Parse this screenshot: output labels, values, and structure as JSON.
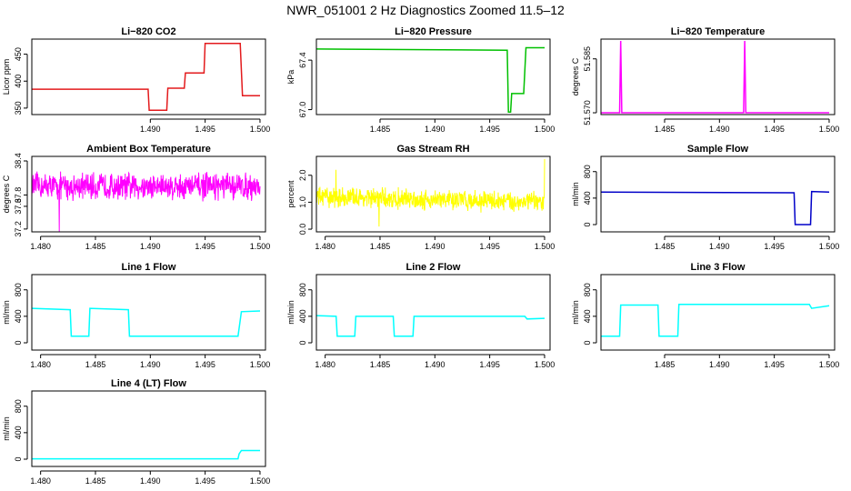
{
  "figure": {
    "title": "NWR_051001  2 Hz Diagnostics Zoomed 11.5–12"
  },
  "colors": {
    "red": "#e31a1c",
    "green": "#00c000",
    "magenta": "#ff00ff",
    "yellow": "#ffff00",
    "blue": "#0000c8",
    "cyan": "#00ffff"
  },
  "chart_data": [
    {
      "type": "line",
      "title": "Li−820 CO2",
      "ylabel": "Licor ppm",
      "color": "red",
      "xlim": [
        1.4792,
        1.5005
      ],
      "ylim": [
        338,
        478
      ],
      "x_ticks": [
        "1.490",
        "1.495",
        "1.500"
      ],
      "x_tick_values": [
        1.49,
        1.495,
        1.5
      ],
      "y_ticks": [
        "350",
        "400",
        "450"
      ],
      "y_tick_values": [
        350,
        400,
        450
      ],
      "x": [
        1.4792,
        1.4898,
        1.4899,
        1.4915,
        1.4916,
        1.4931,
        1.4932,
        1.4949,
        1.495,
        1.4982,
        1.4984,
        1.5
      ],
      "y": [
        385,
        385,
        346,
        346,
        387,
        387,
        415,
        415,
        470,
        470,
        373,
        373
      ]
    },
    {
      "type": "line",
      "title": "Li−820 Pressure",
      "ylabel": "kPa",
      "color": "green",
      "xlim": [
        1.4792,
        1.5005
      ],
      "ylim": [
        66.96,
        67.57
      ],
      "x_ticks": [
        "1.485",
        "1.490",
        "1.495",
        "1.500"
      ],
      "x_tick_values": [
        1.485,
        1.49,
        1.495,
        1.5
      ],
      "y_ticks": [
        "67.0",
        "67.4"
      ],
      "y_tick_values": [
        67.0,
        67.4
      ],
      "x": [
        1.4792,
        1.4966,
        1.4967,
        1.4969,
        1.497,
        1.4981,
        1.4983,
        1.5
      ],
      "y": [
        67.49,
        67.48,
        66.98,
        66.98,
        67.13,
        67.13,
        67.5,
        67.5
      ]
    },
    {
      "type": "line",
      "title": "Li−820 Temperature",
      "ylabel": "degrees C",
      "color": "magenta",
      "xlim": [
        1.4792,
        1.5005
      ],
      "ylim": [
        51.5695,
        51.5905
      ],
      "x_ticks": [
        "1.485",
        "1.490",
        "1.495",
        "1.500"
      ],
      "x_tick_values": [
        1.485,
        1.49,
        1.495,
        1.5
      ],
      "y_ticks": [
        "51.570",
        "51.585"
      ],
      "y_tick_values": [
        51.57,
        51.585
      ],
      "x": [
        1.4792,
        1.4809,
        1.481,
        1.4811,
        1.4922,
        1.4923,
        1.4924,
        1.5
      ],
      "y": [
        51.57,
        51.57,
        51.59,
        51.57,
        51.57,
        51.59,
        51.57,
        51.57
      ]
    },
    {
      "type": "line",
      "title": "Ambient Box Temperature",
      "ylabel": "degrees C",
      "color": "magenta",
      "xlim": [
        1.4792,
        1.5005
      ],
      "ylim": [
        37.15,
        38.48
      ],
      "x_ticks": [
        "1.480",
        "1.485",
        "1.490",
        "1.495",
        "1.500"
      ],
      "x_tick_values": [
        1.48,
        1.485,
        1.49,
        1.495,
        1.5
      ],
      "y_ticks": [
        "37.2",
        "37.6",
        "37.8",
        "38.4"
      ],
      "y_tick_values": [
        37.2,
        37.6,
        37.8,
        38.4
      ],
      "x": [
        1.4792,
        1.49,
        1.5
      ],
      "y": [
        37.95,
        37.95,
        37.95
      ],
      "noise": 0.28,
      "spikes": [
        [
          1.4817,
          37.15
        ]
      ]
    },
    {
      "type": "line",
      "title": "Gas Stream RH",
      "ylabel": "percent",
      "color": "yellow",
      "xlim": [
        1.4792,
        1.5005
      ],
      "ylim": [
        -0.1,
        2.7
      ],
      "x_ticks": [
        "1.480",
        "1.485",
        "1.490",
        "1.495",
        "1.500"
      ],
      "x_tick_values": [
        1.48,
        1.485,
        1.49,
        1.495,
        1.5
      ],
      "y_ticks": [
        "0.0",
        "1.0",
        "2.0"
      ],
      "y_tick_values": [
        0.0,
        1.0,
        2.0
      ],
      "x": [
        1.4792,
        1.5
      ],
      "y": [
        1.2,
        1.0
      ],
      "noise": 0.45,
      "spikes": [
        [
          1.5,
          2.6
        ],
        [
          1.481,
          2.2
        ],
        [
          1.4849,
          0.1
        ]
      ]
    },
    {
      "type": "line",
      "title": "Sample Flow",
      "ylabel": "ml/min",
      "color": "blue",
      "xlim": [
        1.4792,
        1.5005
      ],
      "ylim": [
        -110,
        1030
      ],
      "x_ticks": [
        "1.485",
        "1.490",
        "1.495",
        "1.500"
      ],
      "x_tick_values": [
        1.485,
        1.49,
        1.495,
        1.5
      ],
      "y_ticks": [
        "0",
        "400",
        "800"
      ],
      "y_tick_values": [
        0,
        400,
        800
      ],
      "x": [
        1.4792,
        1.4968,
        1.4969,
        1.4983,
        1.4984,
        1.5
      ],
      "y": [
        490,
        480,
        0,
        0,
        500,
        490
      ]
    },
    {
      "type": "line",
      "title": "Line 1 Flow",
      "ylabel": "ml/min",
      "color": "cyan",
      "xlim": [
        1.4792,
        1.5005
      ],
      "ylim": [
        -110,
        1030
      ],
      "x_ticks": [
        "1.480",
        "1.485",
        "1.490",
        "1.495",
        "1.500"
      ],
      "x_tick_values": [
        1.48,
        1.485,
        1.49,
        1.495,
        1.5
      ],
      "y_ticks": [
        "0",
        "400",
        "800"
      ],
      "y_tick_values": [
        0,
        400,
        800
      ],
      "x": [
        1.4792,
        1.4827,
        1.4828,
        1.4844,
        1.4845,
        1.488,
        1.4881,
        1.498,
        1.4983,
        1.5
      ],
      "y": [
        520,
        500,
        100,
        100,
        520,
        500,
        100,
        100,
        470,
        480
      ]
    },
    {
      "type": "line",
      "title": "Line 2 Flow",
      "ylabel": "ml/min",
      "color": "cyan",
      "xlim": [
        1.4792,
        1.5005
      ],
      "ylim": [
        -110,
        1030
      ],
      "x_ticks": [
        "1.480",
        "1.485",
        "1.490",
        "1.495",
        "1.500"
      ],
      "x_tick_values": [
        1.48,
        1.485,
        1.49,
        1.495,
        1.5
      ],
      "y_ticks": [
        "0",
        "400",
        "800"
      ],
      "y_tick_values": [
        0,
        400,
        800
      ],
      "x": [
        1.4792,
        1.481,
        1.4811,
        1.4827,
        1.4828,
        1.4862,
        1.4863,
        1.488,
        1.4881,
        1.4982,
        1.4984,
        1.5
      ],
      "y": [
        410,
        400,
        100,
        100,
        400,
        400,
        100,
        100,
        400,
        400,
        360,
        370
      ]
    },
    {
      "type": "line",
      "title": "Line 3 Flow",
      "ylabel": "ml/min",
      "color": "cyan",
      "xlim": [
        1.4792,
        1.5005
      ],
      "ylim": [
        -110,
        1030
      ],
      "x_ticks": [
        "1.485",
        "1.490",
        "1.495",
        "1.500"
      ],
      "x_tick_values": [
        1.485,
        1.49,
        1.495,
        1.5
      ],
      "y_ticks": [
        "0",
        "400",
        "800"
      ],
      "y_tick_values": [
        0,
        400,
        800
      ],
      "x": [
        1.4792,
        1.4809,
        1.481,
        1.4844,
        1.4845,
        1.4862,
        1.4863,
        1.4982,
        1.4984,
        1.5
      ],
      "y": [
        100,
        100,
        570,
        570,
        100,
        100,
        580,
        580,
        520,
        560
      ]
    },
    {
      "type": "line",
      "title": "Line 4 (LT) Flow",
      "ylabel": "ml/min",
      "color": "cyan",
      "xlim": [
        1.4792,
        1.5005
      ],
      "ylim": [
        -110,
        1030
      ],
      "x_ticks": [
        "1.480",
        "1.485",
        "1.490",
        "1.495",
        "1.500"
      ],
      "x_tick_values": [
        1.48,
        1.485,
        1.49,
        1.495,
        1.5
      ],
      "y_ticks": [
        "0",
        "400",
        "800"
      ],
      "y_tick_values": [
        0,
        400,
        800
      ],
      "x": [
        1.4792,
        1.498,
        1.4981,
        1.4983,
        1.5
      ],
      "y": [
        5,
        5,
        80,
        130,
        130
      ]
    }
  ]
}
